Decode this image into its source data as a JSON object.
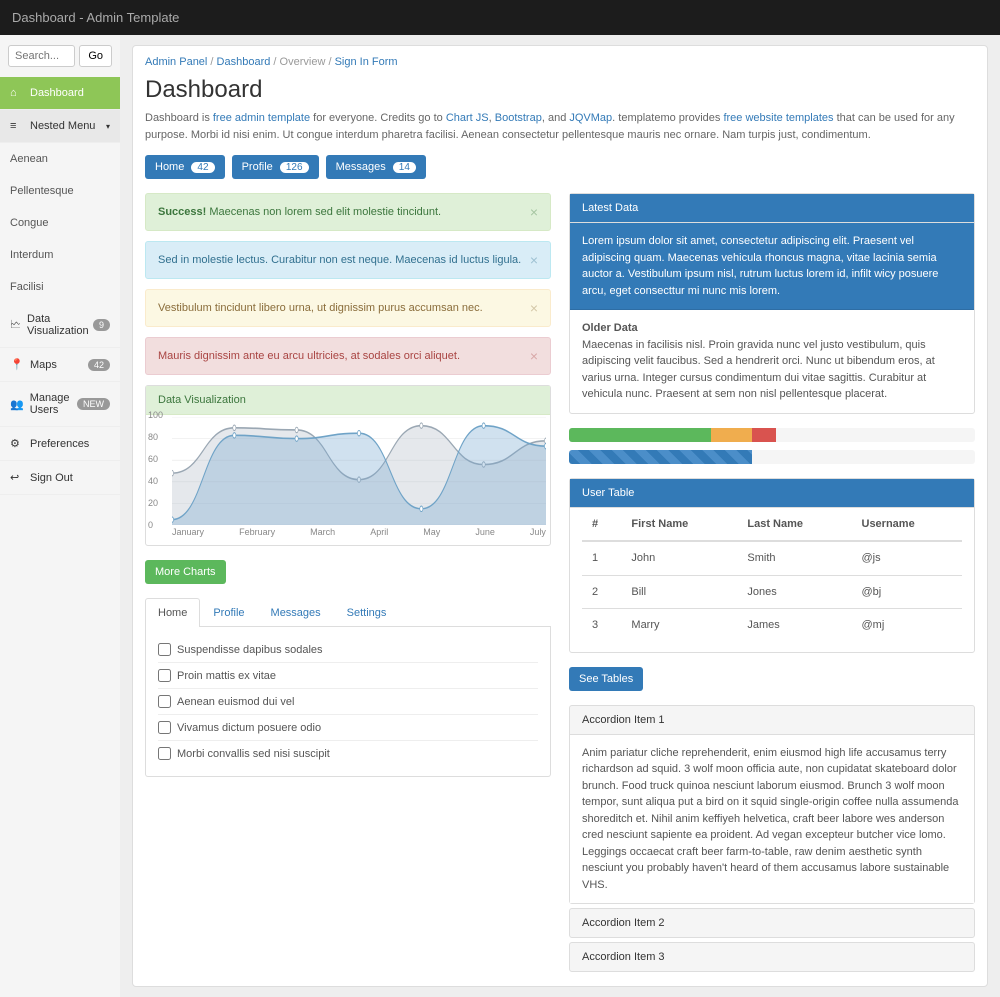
{
  "topbar": {
    "title": "Dashboard - Admin Template"
  },
  "search": {
    "placeholder": "Search...",
    "go": "Go"
  },
  "nav": {
    "dashboard": "Dashboard",
    "nested": "Nested Menu",
    "aenean": "Aenean",
    "pellentesque": "Pellentesque",
    "congue": "Congue",
    "interdum": "Interdum",
    "facilisi": "Facilisi",
    "dataviz": {
      "label": "Data Visualization",
      "badge": "9"
    },
    "maps": {
      "label": "Maps",
      "badge": "42"
    },
    "users": {
      "label": "Manage Users",
      "badge": "NEW"
    },
    "prefs": "Preferences",
    "signout": "Sign Out"
  },
  "breadcrumb": {
    "a": "Admin Panel",
    "b": "Dashboard",
    "c": "Overview",
    "d": "Sign In Form"
  },
  "page": {
    "title": "Dashboard",
    "lead1": "Dashboard is ",
    "lead_link1": "free admin template",
    "lead2": " for everyone. Credits go to ",
    "lead_link2": "Chart JS",
    "lead3": ", ",
    "lead_link3": "Bootstrap",
    "lead4": ", and ",
    "lead_link4": "JQVMap",
    "lead5": ". templatemo provides ",
    "lead_link5": "free website templates",
    "lead6": " that can be used for any purpose. Morbi id nisi enim. Ut congue interdum pharetra facilisi. Aenean consectetur pellentesque mauris nec ornare. Nam turpis just, condimentum."
  },
  "pills": {
    "home": "Home",
    "home_cnt": "42",
    "profile": "Profile",
    "profile_cnt": "126",
    "messages": "Messages",
    "messages_cnt": "14"
  },
  "alerts": {
    "success_strong": "Success!",
    "success": " Maecenas non lorem sed elit molestie tincidunt.",
    "info": "Sed in molestie lectus. Curabitur non est neque. Maecenas id luctus ligula.",
    "warning": "Vestibulum tincidunt libero urna, ut dignissim purus accumsan nec.",
    "danger": "Mauris dignissim ante eu arcu ultricies, at sodales orci aliquet."
  },
  "chart": {
    "title": "Data Visualization",
    "type": "line",
    "yticks": [
      0,
      20,
      40,
      60,
      80,
      100
    ],
    "xlabels": [
      "January",
      "February",
      "March",
      "April",
      "May",
      "June",
      "July"
    ],
    "series1": [
      48,
      90,
      88,
      42,
      92,
      56,
      78
    ],
    "series2": [
      5,
      83,
      80,
      85,
      15,
      92,
      73
    ],
    "colors": {
      "s1_line": "#9aa7b3",
      "s1_fill": "rgba(180,190,200,0.35)",
      "s2_line": "#6fa3c7",
      "s2_fill": "rgba(120,170,210,0.35)",
      "grid": "#e5e5e5",
      "axis": "#bbb"
    },
    "ylim": [
      0,
      100
    ],
    "btn": "More Charts"
  },
  "tabs": {
    "home": "Home",
    "profile": "Profile",
    "messages": "Messages",
    "settings": "Settings"
  },
  "todo": {
    "i0": "Suspendisse dapibus sodales",
    "i1": "Proin mattis ex vitae",
    "i2": "Aenean euismod dui vel",
    "i3": "Vivamus dictum posuere odio",
    "i4": "Morbi convallis sed nisi suscipit"
  },
  "latest": {
    "title": "Latest Data",
    "body": "Lorem ipsum dolor sit amet, consectetur adipiscing elit. Praesent vel adipiscing quam. Maecenas vehicula rhoncus magna, vitae lacinia semia auctor a. Vestibulum ipsum nisl, rutrum luctus lorem id, infilt wicy posuere arcu, eget consecttur mi nunc mis lorem."
  },
  "older": {
    "title": "Older Data",
    "body": "Maecenas in facilisis nisl. Proin gravida nunc vel justo vestibulum, quis adipiscing velit faucibus. Sed a hendrerit orci. Nunc ut bibendum eros, at varius urna. Integer cursus condimentum dui vitae sagittis. Curabitur at vehicula nunc. Praesent at sem non nisl pellentesque placerat."
  },
  "progress": {
    "g": 35,
    "y": 10,
    "r": 6,
    "stripe": 45
  },
  "usertable": {
    "title": "User Table",
    "cols": {
      "num": "#",
      "first": "First Name",
      "last": "Last Name",
      "user": "Username"
    },
    "r0": {
      "n": "1",
      "f": "John",
      "l": "Smith",
      "u": "@js"
    },
    "r1": {
      "n": "2",
      "f": "Bill",
      "l": "Jones",
      "u": "@bj"
    },
    "r2": {
      "n": "3",
      "f": "Marry",
      "l": "James",
      "u": "@mj"
    },
    "btn": "See Tables"
  },
  "accordion": {
    "t0": "Accordion Item 1",
    "b0": "Anim pariatur cliche reprehenderit, enim eiusmod high life accusamus terry richardson ad squid. 3 wolf moon officia aute, non cupidatat skateboard dolor brunch. Food truck quinoa nesciunt laborum eiusmod. Brunch 3 wolf moon tempor, sunt aliqua put a bird on it squid single-origin coffee nulla assumenda shoreditch et. Nihil anim keffiyeh helvetica, craft beer labore wes anderson cred nesciunt sapiente ea proident. Ad vegan excepteur butcher vice lomo. Leggings occaecat craft beer farm-to-table, raw denim aesthetic synth nesciunt you probably haven't heard of them accusamus labore sustainable VHS.",
    "t1": "Accordion Item 2",
    "t2": "Accordion Item 3"
  }
}
